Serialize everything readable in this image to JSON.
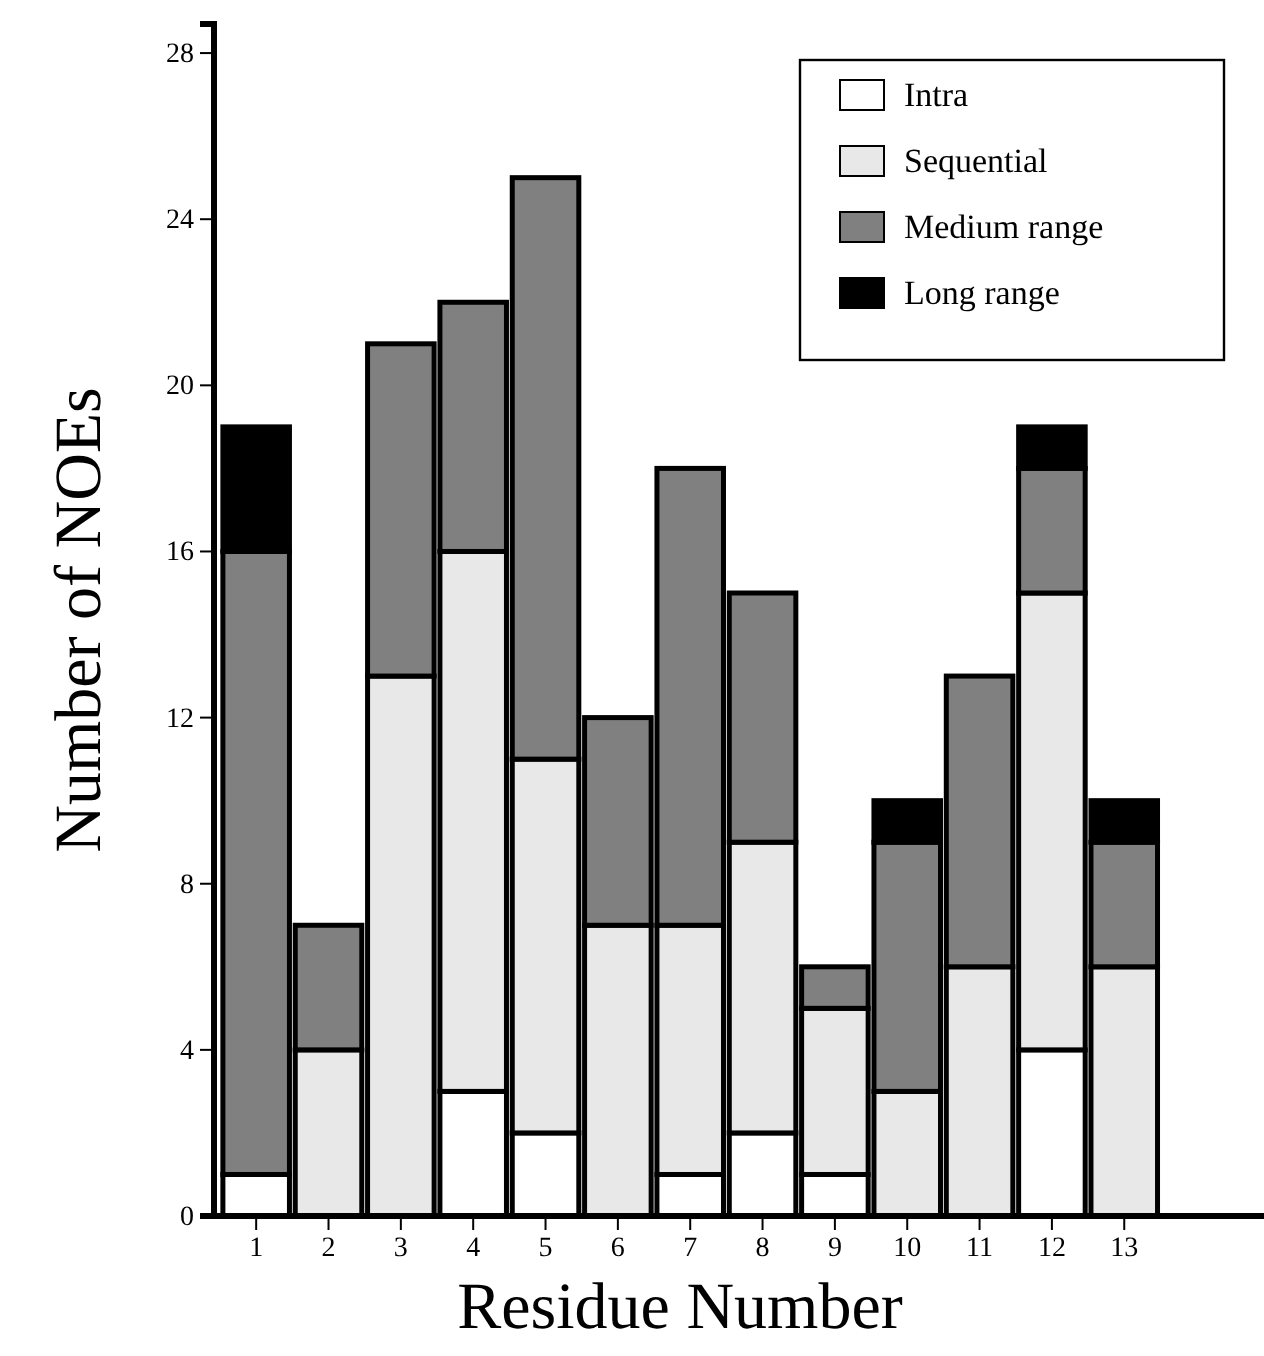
{
  "chart_data": {
    "type": "bar",
    "stacked": true,
    "xlabel": "Residue Number",
    "ylabel": "Number of NOEs",
    "categories": [
      "1",
      "2",
      "3",
      "4",
      "5",
      "6",
      "7",
      "8",
      "9",
      "10",
      "11",
      "12",
      "13"
    ],
    "series": [
      {
        "name": "Intra",
        "color": "#ffffff",
        "values": [
          1,
          0,
          0,
          3,
          2,
          0,
          1,
          2,
          1,
          0,
          0,
          4,
          0
        ]
      },
      {
        "name": "Sequential",
        "color": "#e8e8e8",
        "values": [
          0,
          4,
          13,
          13,
          9,
          7,
          6,
          7,
          4,
          3,
          6,
          11,
          6
        ]
      },
      {
        "name": "Medium range",
        "color": "#808080",
        "values": [
          15,
          3,
          8,
          6,
          14,
          5,
          11,
          6,
          1,
          6,
          7,
          3,
          3
        ]
      },
      {
        "name": "Long range",
        "color": "#000000",
        "values": [
          3,
          0,
          0,
          0,
          0,
          0,
          0,
          0,
          0,
          1,
          0,
          1,
          1
        ]
      }
    ],
    "ylim": [
      0,
      28.7
    ],
    "yticks": [
      0,
      4,
      8,
      12,
      16,
      20,
      24,
      28
    ],
    "grid": false,
    "legend": "top right"
  }
}
